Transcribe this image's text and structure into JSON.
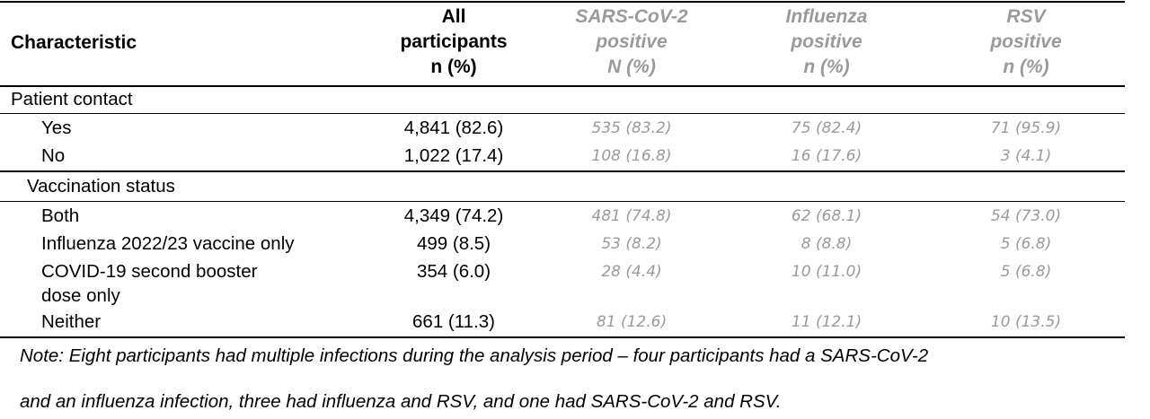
{
  "header": {
    "characteristic": "Characteristic",
    "all": [
      "All",
      "participants",
      "n (%)"
    ],
    "sars": [
      "SARS-CoV-2",
      "positive",
      "N (%)"
    ],
    "flu": [
      "Influenza",
      "positive",
      "n (%)"
    ],
    "rsv": [
      "RSV",
      "positive",
      "n (%)"
    ]
  },
  "sections": {
    "contact": {
      "title": "Patient contact",
      "rows": [
        {
          "label": "Yes",
          "all": "4,841 (82.6)",
          "sars": "535 (83.2)",
          "flu": "75 (82.4)",
          "rsv": "71 (95.9)"
        },
        {
          "label": "No",
          "all": "1,022 (17.4)",
          "sars": "108 (16.8)",
          "flu": "16 (17.6)",
          "rsv": "3 (4.1)"
        }
      ]
    },
    "vaccination": {
      "title": "Vaccination status",
      "rows": [
        {
          "label": "Both",
          "all": "4,349 (74.2)",
          "sars": "481 (74.8)",
          "flu": "62 (68.1)",
          "rsv": "54 (73.0)"
        },
        {
          "label": "Influenza 2022/23 vaccine only",
          "all": "499 (8.5)",
          "sars": "53 (8.2)",
          "flu": "8 (8.8)",
          "rsv": "5 (6.8)"
        },
        {
          "label": "COVID-19 second booster",
          "label2": "dose only",
          "all": "354 (6.0)",
          "sars": "28 (4.4)",
          "flu": "10 (11.0)",
          "rsv": "5 (6.8)"
        },
        {
          "label": "Neither",
          "all": "661 (11.3)",
          "sars": "81 (12.6)",
          "flu": "11 (12.1)",
          "rsv": "10 (13.5)"
        }
      ]
    }
  },
  "note": {
    "line1": "Note: Eight participants had multiple infections during the analysis period – four participants had a SARS-CoV-2",
    "line2": "and an influenza infection, three had influenza and RSV, and one had SARS-CoV-2 and RSV."
  }
}
